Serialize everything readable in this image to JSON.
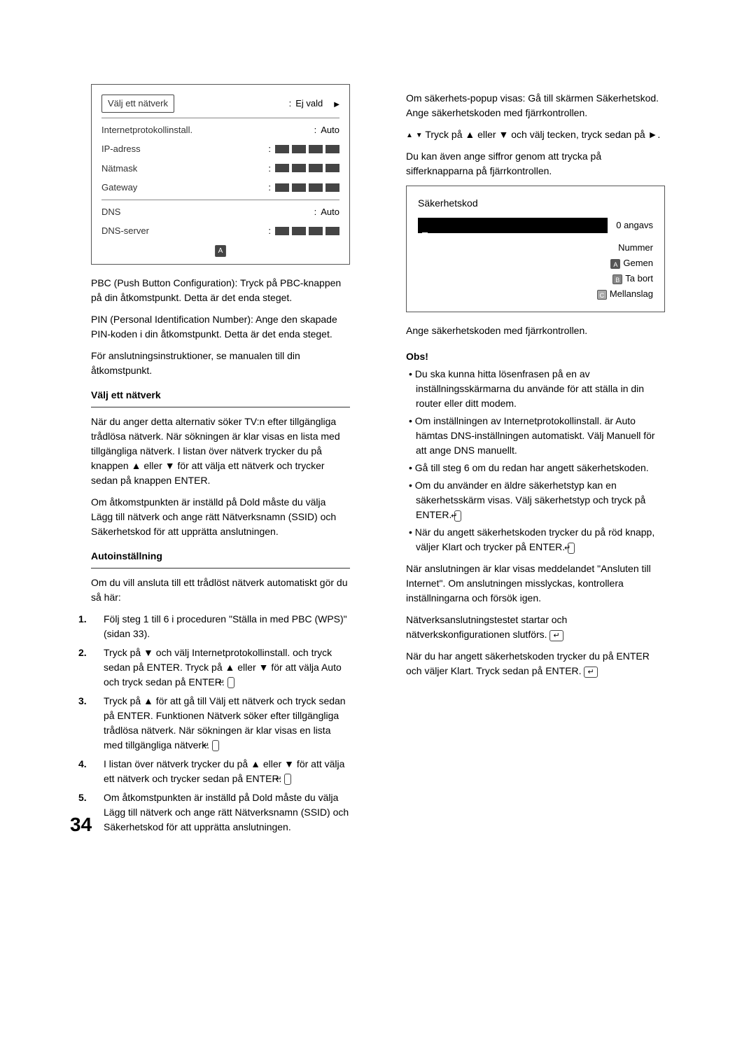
{
  "pageNumber": "34",
  "net": {
    "rows": {
      "select": {
        "label": "Välj ett nätverk",
        "value": "Ej vald"
      },
      "ipproto": {
        "label": "Internetprotokollinstall.",
        "value": "Auto"
      },
      "ip": {
        "label": "IP-adress"
      },
      "mask": {
        "label": "Nätmask"
      },
      "gw": {
        "label": "Gateway"
      },
      "dns": {
        "label": "DNS",
        "value": "Auto"
      },
      "dnssrv": {
        "label": "DNS-server"
      }
    },
    "aLabel": "A"
  },
  "left": {
    "p1": "PBC (Push Button Configuration): Tryck på PBC-knappen på din åtkomstpunkt. Detta är det enda steget.",
    "p2": "PIN (Personal Identification Number): Ange den skapade PIN-koden i din åtkomstpunkt. Detta är det enda steget.",
    "p3": "För anslutningsinstruktioner, se manualen till din åtkomstpunkt.",
    "selectHead": "Välj ett nätverk",
    "selectBody": "När du anger detta alternativ söker TV:n efter tillgängliga trådlösa nätverk. När sökningen är klar visas en lista med tillgängliga nätverk. I listan över nätverk trycker du på knappen ▲ eller ▼ för att välja ett nätverk och trycker sedan på knappen ENTER.",
    "p4": "Om åtkomstpunkten är inställd på Dold måste du välja Lägg till nätverk och ange rätt Nätverksnamn (SSID) och Säkerhetskod för att upprätta anslutningen.",
    "autoHead": "Autoinställning",
    "autoBody": "Om du vill ansluta till ett trådlöst nätverk automatiskt gör du så här:",
    "s1": "Följ steg 1 till 6 i proceduren \"Ställa in med PBC (WPS)\" (sidan 33).",
    "s2": "Tryck på ▼ och välj Internetprotokollinstall. och tryck sedan på ENTER. Tryck på ▲ eller ▼ för att välja Auto och tryck sedan på ENTER.",
    "s3": "Tryck på ▲ för att gå till Välj ett nätverk och tryck sedan på ENTER. Funktionen Nätverk söker efter tillgängliga trådlösa nätverk. När sökningen är klar visas en lista med tillgängliga nätverk.",
    "s4": "I listan över nätverk trycker du på ▲ eller ▼ för att välja ett nätverk och trycker sedan på ENTER.",
    "s5": "Om åtkomstpunkten är inställd på Dold måste du välja Lägg till nätverk och ange rätt Nätverksnamn (SSID) och Säkerhetskod för att upprätta anslutningen."
  },
  "sec": {
    "title": "Säkerhetskod",
    "count": "0 angavs",
    "legend": {
      "numbers": "Nummer",
      "a": "Gemen",
      "b": "Ta bort",
      "c": "Mellanslag"
    }
  },
  "right": {
    "p0a": "Om säkerhets-popup visas: Gå till skärmen Säkerhetskod. Ange säkerhetskoden med fjärrkontrollen.",
    "p0b": "Tryck på ▲ eller ▼ och välj tecken, tryck sedan på ►.",
    "p0c": "Du kan även ange siffror genom att trycka på sifferknapparna på fjärrkontrollen.",
    "p1": "Ange säkerhetskoden med fjärrkontrollen.",
    "note": "Obs!",
    "b1": "Du ska kunna hitta lösenfrasen på en av inställningsskärmarna du använde för att ställa in din router eller ditt modem.",
    "b2": "Om inställningen av Internetprotokollinstall. är Auto hämtas DNS-inställningen automatiskt. Välj Manuell för att ange DNS manuellt.",
    "b3": "Gå till steg 6 om du redan har angett säkerhetskoden.",
    "b4": "Om du använder en äldre säkerhetstyp kan en säkerhetsskärm visas. Välj säkerhetstyp och tryck på ENTER.",
    "b5": "När du angett säkerhetskoden trycker du på röd knapp, väljer Klart och trycker på ENTER.",
    "p2": "När anslutningen är klar visas meddelandet \"Ansluten till Internet\". Om anslutningen misslyckas, kontrollera inställningarna och försök igen.",
    "p3": "Nätverksanslutningstestet startar och nätverkskonfigurationen slutförs.",
    "p4": "När du har angett säkerhetskoden trycker du på ENTER och väljer Klart. Tryck sedan på ENTER."
  }
}
